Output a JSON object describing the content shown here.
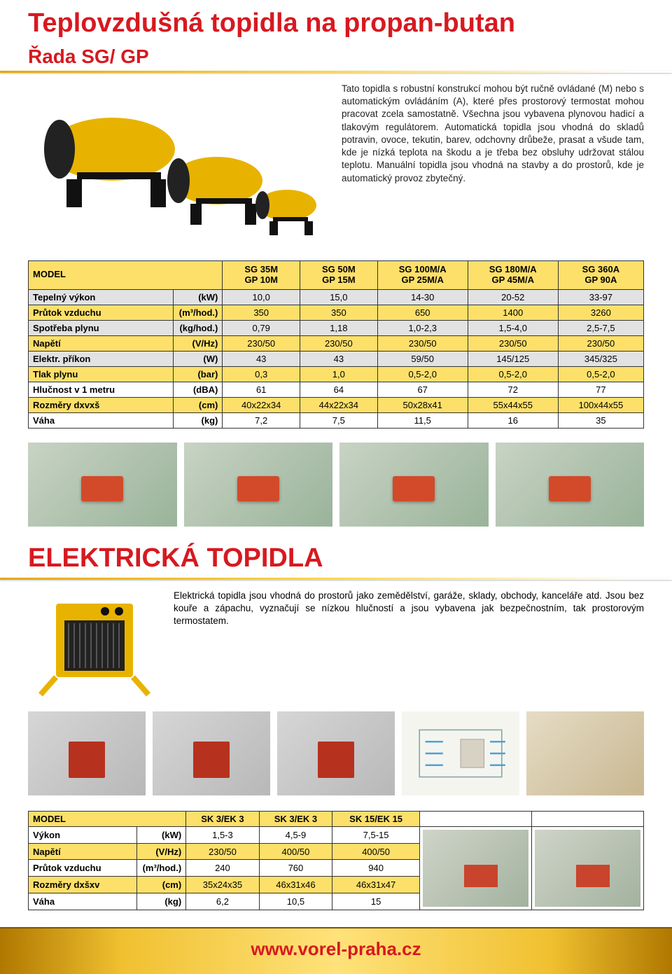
{
  "colors": {
    "accent_yellow": "#fde06a",
    "brand_red": "#d71920",
    "gold_grad_start": "#e5a800",
    "gold_grad_mid": "#ffd750",
    "row_grey": "#e2e2e2",
    "border": "#333333"
  },
  "header": {
    "title": "Teplovzdušná topidla na propan-butan",
    "subtitle": "Řada SG/ GP"
  },
  "intro": "Tato topidla s robustní konstrukcí mohou být ručně ovládané (M) nebo s automatickým ovládáním (A), které přes prostorový termostat mohou pracovat zcela samostatně. Všechna jsou vybavena plynovou hadicí a tlakovým regulátorem. Automatická topidla jsou vhodná do skladů potravin, ovoce, tekutin, barev, odchovny drůbeže, prasat a všude tam, kde je nízká teplota na škodu a je třeba bez obsluhy udržovat stálou teplotu. Manuální topidla jsou vhodná na stavby a do prostorů, kde je automatický provoz zbytečný.",
  "table1": {
    "corner": "MODEL",
    "columns": [
      "SG 35M\nGP 10M",
      "SG 50M\nGP 15M",
      "SG 100M/A\nGP 25M/A",
      "SG 180M/A\nGP 45M/A",
      "SG 360A\nGP 90A"
    ],
    "rows": [
      {
        "label": "Tepelný výkon",
        "unit": "(kW)",
        "cls": "g",
        "vals": [
          "10,0",
          "15,0",
          "14-30",
          "20-52",
          "33-97"
        ]
      },
      {
        "label": "Průtok vzduchu",
        "unit": "(m³/hod.)",
        "cls": "y",
        "vals": [
          "350",
          "350",
          "650",
          "1400",
          "3260"
        ]
      },
      {
        "label": "Spotřeba plynu",
        "unit": "(kg/hod.)",
        "cls": "g",
        "vals": [
          "0,79",
          "1,18",
          "1,0-2,3",
          "1,5-4,0",
          "2,5-7,5"
        ]
      },
      {
        "label": "Napětí",
        "unit": "(V/Hz)",
        "cls": "y",
        "vals": [
          "230/50",
          "230/50",
          "230/50",
          "230/50",
          "230/50"
        ]
      },
      {
        "label": "Elektr. příkon",
        "unit": "(W)",
        "cls": "g",
        "vals": [
          "43",
          "43",
          "59/50",
          "145/125",
          "345/325"
        ]
      },
      {
        "label": "Tlak plynu",
        "unit": "(bar)",
        "cls": "y",
        "vals": [
          "0,3",
          "1,0",
          "0,5-2,0",
          "0,5-2,0",
          "0,5-2,0"
        ]
      },
      {
        "label": "Hlučnost v 1 metru",
        "unit": "(dBA)",
        "cls": "w",
        "vals": [
          "61",
          "64",
          "67",
          "72",
          "77"
        ]
      },
      {
        "label": "Rozměry dxvxš",
        "unit": "(cm)",
        "cls": "y",
        "vals": [
          "40x22x34",
          "44x22x34",
          "50x28x41",
          "55x44x55",
          "100x44x55"
        ]
      },
      {
        "label": "Váha",
        "unit": "(kg)",
        "cls": "w",
        "vals": [
          "7,2",
          "7,5",
          "11,5",
          "16",
          "35"
        ]
      }
    ]
  },
  "section2": {
    "title": "ELEKTRICKÁ TOPIDLA",
    "text": "Elektrická topidla jsou vhodná do prostorů jako zemědělství, garáže, sklady, obchody, kanceláře atd. Jsou bez kouře a zápachu, vyznačují se nízkou hlučností a jsou vybavena jak bezpečnostním, tak prostorovým termostatem."
  },
  "table2": {
    "corner": "MODEL",
    "columns": [
      "SK 3/EK 3",
      "SK 3/EK 3",
      "SK 15/EK 15"
    ],
    "rows": [
      {
        "label": "Výkon",
        "unit": "(kW)",
        "cls": "w",
        "vals": [
          "1,5-3",
          "4,5-9",
          "7,5-15"
        ]
      },
      {
        "label": "Napětí",
        "unit": "(V/Hz)",
        "cls": "y",
        "vals": [
          "230/50",
          "400/50",
          "400/50"
        ]
      },
      {
        "label": "Průtok vzduchu",
        "unit": "(m³/hod.)",
        "cls": "w",
        "vals": [
          "240",
          "760",
          "940"
        ]
      },
      {
        "label": "Rozměry dxšxv",
        "unit": "(cm)",
        "cls": "y",
        "vals": [
          "35x24x35",
          "46x31x46",
          "46x31x47"
        ]
      },
      {
        "label": "Váha",
        "unit": "(kg)",
        "cls": "w",
        "vals": [
          "6,2",
          "10,5",
          "15"
        ]
      }
    ]
  },
  "footer": "www.vorel-praha.cz"
}
